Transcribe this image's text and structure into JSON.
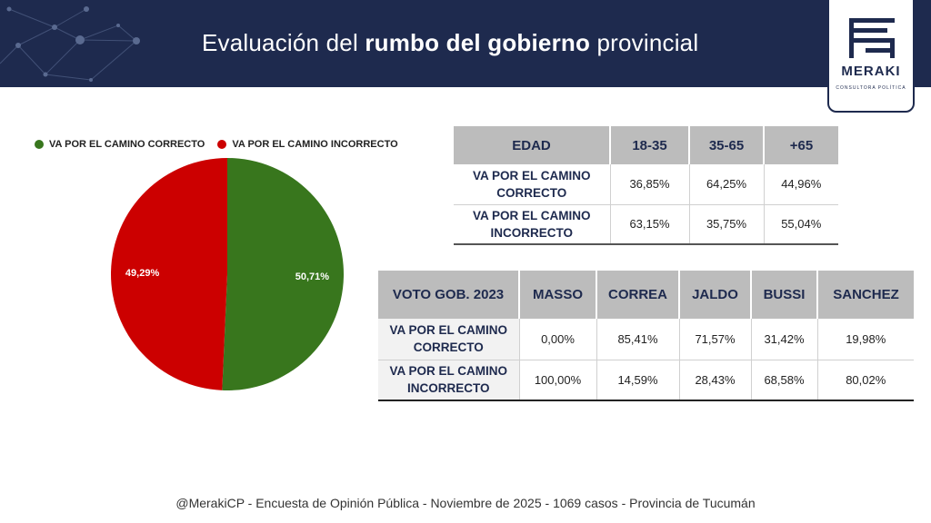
{
  "header": {
    "title_pre": "Evaluación del ",
    "title_bold": "rumbo del gobierno",
    "title_post": " provincial",
    "logo_word": "MERAKI",
    "logo_sub": "CONSULTORA POLÍTICA"
  },
  "chart_data": {
    "type": "pie",
    "categories": [
      "VA POR EL CAMINO CORRECTO",
      "VA POR EL CAMINO INCORRECTO"
    ],
    "values": [
      50.71,
      49.29
    ],
    "labels": [
      "50,71%",
      "49,29%"
    ],
    "colors": [
      "#38761d",
      "#cc0000"
    ]
  },
  "table_age": {
    "headers": [
      "EDAD",
      "18-35",
      "35-65",
      "+65"
    ],
    "rows": [
      {
        "label": "VA POR EL CAMINO CORRECTO",
        "values": [
          "36,85%",
          "64,25%",
          "44,96%"
        ]
      },
      {
        "label": "VA POR EL CAMINO INCORRECTO",
        "values": [
          "63,15%",
          "35,75%",
          "55,04%"
        ]
      }
    ]
  },
  "table_vote": {
    "headers": [
      "VOTO GOB. 2023",
      "MASSO",
      "CORREA",
      "JALDO",
      "BUSSI",
      "SANCHEZ"
    ],
    "rows": [
      {
        "label": "VA POR EL CAMINO CORRECTO",
        "values": [
          "0,00%",
          "85,41%",
          "71,57%",
          "31,42%",
          "19,98%"
        ]
      },
      {
        "label": "VA POR EL CAMINO INCORRECTO",
        "values": [
          "100,00%",
          "14,59%",
          "28,43%",
          "68,58%",
          "80,02%"
        ]
      }
    ]
  },
  "footer": "@MerakiCP - Encuesta de Opinión Pública - Noviembre de 2025 - 1069 casos - Provincia de Tucumán"
}
